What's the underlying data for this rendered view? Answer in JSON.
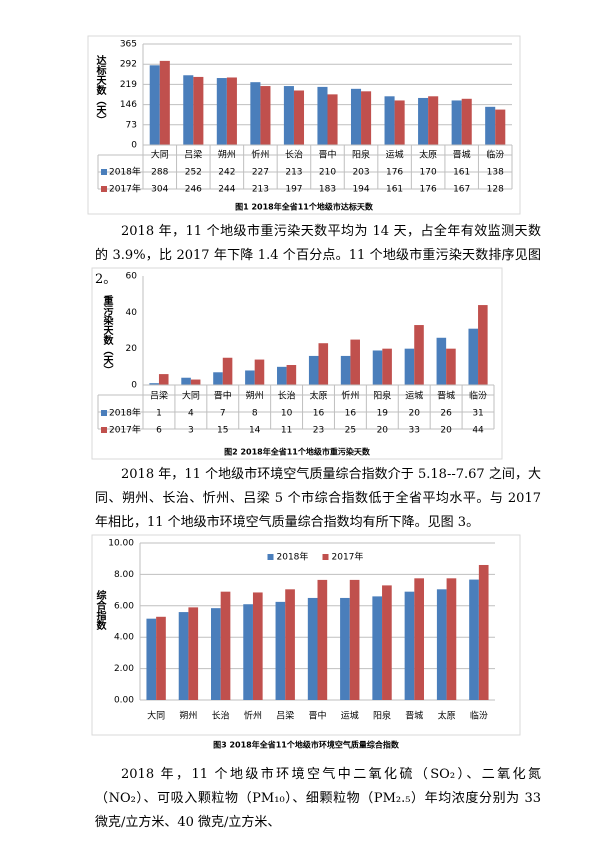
{
  "chart_data": [
    {
      "type": "bar",
      "title": "图1  2018年全省11个地级市达标天数",
      "y_label": "达标天数（天）",
      "categories": [
        "大同",
        "吕梁",
        "朔州",
        "忻州",
        "长治",
        "晋中",
        "阳泉",
        "运城",
        "太原",
        "晋城",
        "临汾"
      ],
      "series": [
        {
          "name": "2018年",
          "color": "#4a7ebb",
          "values": [
            288,
            252,
            242,
            227,
            213,
            210,
            203,
            176,
            170,
            161,
            138
          ]
        },
        {
          "name": "2017年",
          "color": "#c0504d",
          "values": [
            304,
            246,
            244,
            213,
            197,
            183,
            194,
            161,
            176,
            167,
            128
          ]
        }
      ],
      "ylim": [
        0,
        365
      ],
      "yticks": [
        0,
        73,
        146,
        219,
        292,
        365
      ],
      "grid": true,
      "table": true
    },
    {
      "type": "bar",
      "title": "图2  2018年全省11个地级市重污染天数",
      "y_label": "重污染天数（天）",
      "categories": [
        "吕梁",
        "大同",
        "晋中",
        "朔州",
        "长治",
        "太原",
        "忻州",
        "阳泉",
        "运城",
        "晋城",
        "临汾"
      ],
      "series": [
        {
          "name": "2018年",
          "color": "#4a7ebb",
          "values": [
            1,
            4,
            7,
            8,
            10,
            16,
            16,
            19,
            20,
            26,
            31
          ]
        },
        {
          "name": "2017年",
          "color": "#c0504d",
          "values": [
            6,
            3,
            15,
            14,
            11,
            23,
            25,
            20,
            33,
            20,
            44
          ]
        }
      ],
      "ylim": [
        0,
        60
      ],
      "yticks": [
        0,
        20,
        40,
        60
      ],
      "grid": false,
      "table": true
    },
    {
      "type": "bar",
      "title": "图3  2018年全省11个地级市环境空气质量综合指数",
      "y_label": "综合指数",
      "categories": [
        "大同",
        "朔州",
        "长治",
        "忻州",
        "吕梁",
        "晋中",
        "运城",
        "阳泉",
        "晋城",
        "太原",
        "临汾"
      ],
      "series": [
        {
          "name": "2018年",
          "color": "#4a7ebb",
          "values": [
            5.18,
            5.6,
            5.85,
            6.1,
            6.25,
            6.5,
            6.5,
            6.6,
            6.9,
            7.05,
            7.67
          ]
        },
        {
          "name": "2017年",
          "color": "#c0504d",
          "values": [
            5.3,
            5.9,
            6.9,
            6.85,
            7.05,
            7.65,
            7.65,
            7.3,
            7.75,
            7.75,
            8.6
          ]
        }
      ],
      "ylim": [
        0,
        10
      ],
      "yticks": [
        {
          "value": 0,
          "label": "0.00"
        },
        {
          "value": 2,
          "label": "2.00"
        },
        {
          "value": 4,
          "label": "4.00"
        },
        {
          "value": 6,
          "label": "6.00"
        },
        {
          "value": 8,
          "label": "8.00"
        },
        {
          "value": 10,
          "label": "10.00"
        }
      ],
      "grid": true,
      "table": false,
      "legend": "top"
    }
  ],
  "paragraphs": [
    "2018 年，11 个地级市重污染天数平均为 14 天，占全年有效监测天数的 3.9%，比 2017 年下降 1.4 个百分点。11 个地级市重污染天数排序见图 2。",
    "2018 年，11 个地级市环境空气质量综合指数介于 5.18--7.67 之间，大同、朔州、长治、忻州、吕梁 5 个市综合指数低于全省平均水平。与 2017 年相比，11 个地级市环境空气质量综合指数均有所下降。见图 3。",
    "2018 年，11 个地级市环境空气中二氧化硫（SO₂）、二氧化氮（NO₂）、可吸入颗粒物（PM₁₀）、细颗粒物（PM₂.₅）年均浓度分别为 33 微克/立方米、40 微克/立方米、"
  ]
}
